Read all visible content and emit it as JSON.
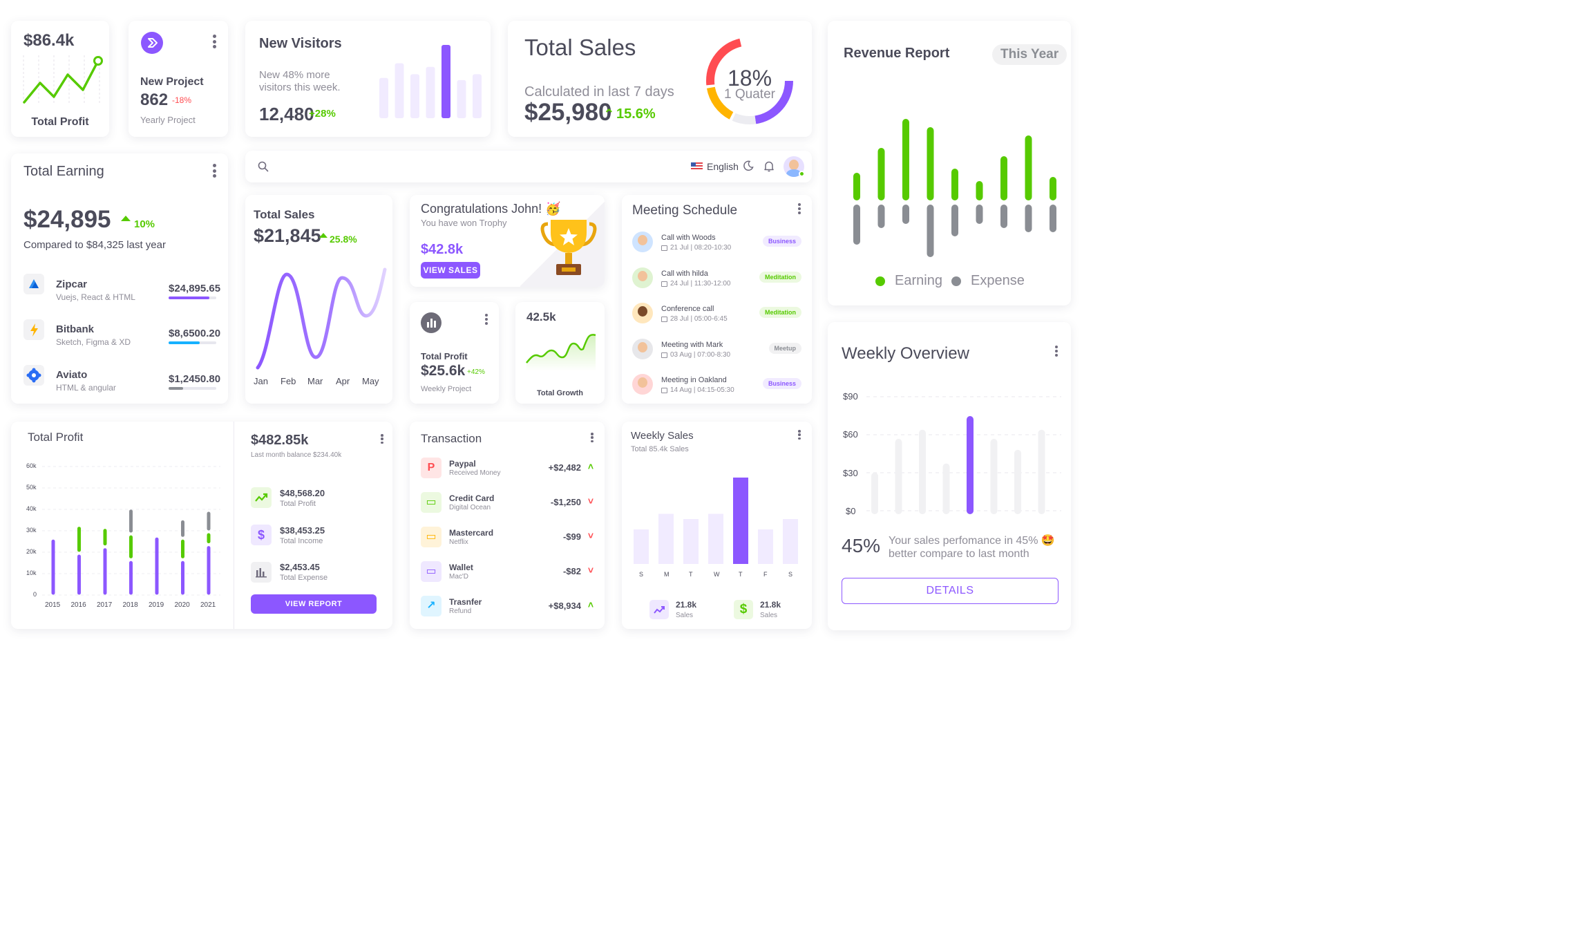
{
  "colors": {
    "primary": "#8c57ff",
    "success": "#56ca00",
    "danger": "#ff4c51",
    "warning": "#ffb400",
    "info": "#16b1ff",
    "secondary": "#8a8d93"
  },
  "profit_mini": {
    "value": "$86.4k",
    "label": "Total Profit"
  },
  "new_project": {
    "title": "New Project",
    "value": "862",
    "change": "-18%",
    "subtitle": "Yearly Project",
    "icon": "chevrons-icon"
  },
  "new_visitors": {
    "title": "New Visitors",
    "desc_line1": "New 48% more",
    "desc_line2": "visitors this week.",
    "value": "12,480",
    "change": "+28%",
    "bars": [
      55,
      75,
      60,
      70,
      100,
      52,
      60
    ]
  },
  "total_sales_top": {
    "title": "Total Sales",
    "desc": "Calculated in last 7 days",
    "value": "$25,980",
    "change": "15.6%",
    "donut_percent": "18%",
    "donut_label": "1 Quater"
  },
  "revenue_report": {
    "title": "Revenue Report",
    "period": "This Year",
    "earning_label": "Earning",
    "expense_label": "Expense",
    "earning": [
      25,
      55,
      90,
      80,
      30,
      15,
      45,
      70,
      20
    ],
    "expense": [
      40,
      20,
      15,
      55,
      30,
      15,
      20,
      25,
      25
    ]
  },
  "total_earning": {
    "title": "Total Earning",
    "value": "$24,895",
    "change": "10%",
    "compare": "Compared to $84,325 last year",
    "items": [
      {
        "name": "Zipcar",
        "sub": "Vuejs, React & HTML",
        "amount": "$24,895.65",
        "progress": 0.85,
        "color": "#8c57ff",
        "icon": "zipcar-icon"
      },
      {
        "name": "Bitbank",
        "sub": "Sketch, Figma & XD",
        "amount": "$8,6500.20",
        "progress": 0.65,
        "color": "#16b1ff",
        "icon": "bolt-icon"
      },
      {
        "name": "Aviato",
        "sub": "HTML & angular",
        "amount": "$1,2450.80",
        "progress": 0.3,
        "color": "#8a8d93",
        "icon": "aviato-icon"
      }
    ]
  },
  "navbar": {
    "language": "English",
    "search_icon": "search-icon",
    "theme_icon": "moon-icon",
    "bell_icon": "bell-icon"
  },
  "total_sales_line": {
    "title": "Total Sales",
    "value": "$21,845",
    "change": "25.8%",
    "months": [
      "Jan",
      "Feb",
      "Mar",
      "Apr",
      "May"
    ]
  },
  "congrats": {
    "title": "Congratulations John! 🥳",
    "subtitle": "You have won Trophy",
    "value": "$42.8k",
    "button": "VIEW SALES"
  },
  "total_profit_mini": {
    "title": "Total Profit",
    "value": "$25.6k",
    "change": "+42%",
    "subtitle": "Weekly Project"
  },
  "growth": {
    "value": "42.5k",
    "label": "Total Growth"
  },
  "meetings": {
    "title": "Meeting Schedule",
    "items": [
      {
        "title": "Call with Woods",
        "date": "21 Jul | 08:20-10:30",
        "tag": "Business",
        "tag_type": "primary"
      },
      {
        "title": "Call with hilda",
        "date": "24 Jul | 11:30-12:00",
        "tag": "Meditation",
        "tag_type": "success"
      },
      {
        "title": "Conference call",
        "date": "28 Jul | 05:00-6:45",
        "tag": "Meditation",
        "tag_type": "success"
      },
      {
        "title": "Meeting with Mark",
        "date": "03 Aug | 07:00-8:30",
        "tag": "Meetup",
        "tag_type": "secondary"
      },
      {
        "title": "Meeting in Oakland",
        "date": "14 Aug | 04:15-05:30",
        "tag": "Business",
        "tag_type": "primary"
      }
    ]
  },
  "weekly_overview": {
    "title": "Weekly Overview",
    "yticks": [
      "$90",
      "$60",
      "$30",
      "$0"
    ],
    "percent": "45%",
    "desc_line1": "Your sales perfomance in 45% 🤩",
    "desc_line2": "better compare to last month",
    "button": "DETAILS",
    "bars": [
      38,
      75,
      85,
      48,
      100,
      75,
      63,
      85
    ]
  },
  "total_profit_chart": {
    "title": "Total Profit",
    "years": [
      "2015",
      "2016",
      "2017",
      "2018",
      "2019",
      "2020",
      "2021"
    ],
    "yticks": [
      "60k",
      "50k",
      "40k",
      "30k",
      "20k",
      "10k",
      "0"
    ],
    "chart_data": {
      "type": "bar",
      "categories": [
        "2015",
        "2016",
        "2017",
        "2018",
        "2019",
        "2020",
        "2021"
      ],
      "series": [
        {
          "values": [
            27,
            20,
            23,
            17,
            28,
            17,
            24
          ]
        },
        {
          "values": [
            0,
            13,
            9,
            12,
            0,
            10,
            6
          ]
        },
        {
          "values": [
            0,
            0,
            0,
            12,
            0,
            9,
            10
          ]
        }
      ]
    }
  },
  "balance": {
    "value": "$482.85k",
    "subtitle": "Last month balance $234.40k",
    "items": [
      {
        "value": "$48,568.20",
        "label": "Total Profit",
        "icon": "trending-up-icon"
      },
      {
        "value": "$38,453.25",
        "label": "Total Income",
        "icon": "dollar-icon"
      },
      {
        "value": "$2,453.45",
        "label": "Total Expense",
        "icon": "bar-chart-icon"
      }
    ],
    "button": "VIEW REPORT"
  },
  "transaction": {
    "title": "Transaction",
    "items": [
      {
        "name": "Paypal",
        "sub": "Received Money",
        "amount": "+$2,482",
        "dir": "up",
        "icon": "paypal-icon"
      },
      {
        "name": "Credit Card",
        "sub": "Digital Ocean",
        "amount": "-$1,250",
        "dir": "down",
        "icon": "credit-card-icon"
      },
      {
        "name": "Mastercard",
        "sub": "Netflix",
        "amount": "-$99",
        "dir": "down",
        "icon": "mastercard-icon"
      },
      {
        "name": "Wallet",
        "sub": "Mac'D",
        "amount": "-$82",
        "dir": "down",
        "icon": "wallet-icon"
      },
      {
        "name": "Trasnfer",
        "sub": "Refund",
        "amount": "+$8,934",
        "dir": "up",
        "icon": "transfer-icon"
      }
    ]
  },
  "weekly_sales": {
    "title": "Weekly Sales",
    "subtitle": "Total 85.4k Sales",
    "days": [
      "S",
      "M",
      "T",
      "W",
      "T",
      "F",
      "S"
    ],
    "bars": [
      40,
      58,
      52,
      58,
      100,
      40,
      52
    ],
    "stats": [
      {
        "value": "21.8k",
        "label": "Sales",
        "icon": "trending-up-icon"
      },
      {
        "value": "21.8k",
        "label": "Sales",
        "icon": "dollar-icon"
      }
    ]
  }
}
